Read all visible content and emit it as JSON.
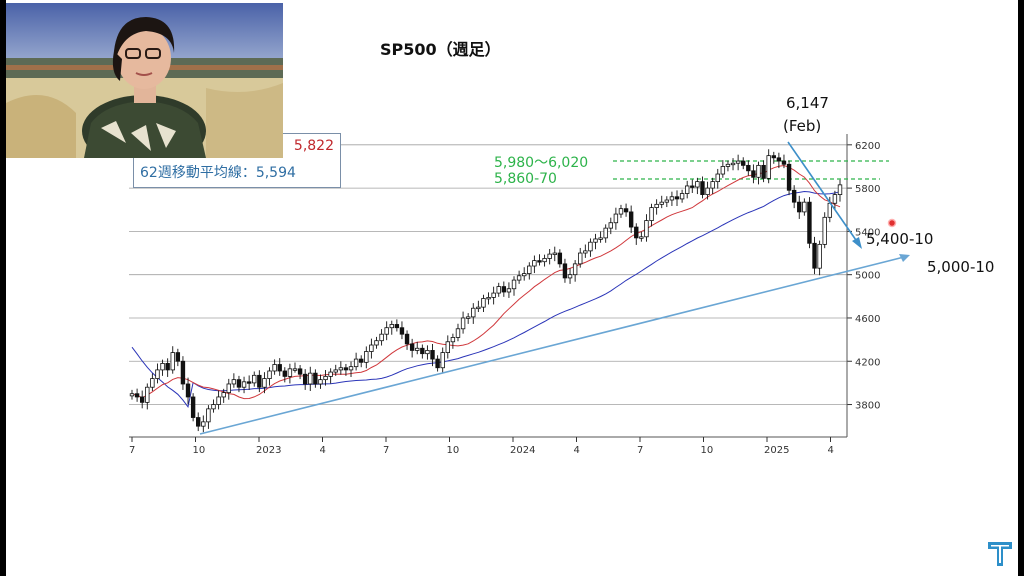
{
  "chart_data": {
    "type": "candlestick",
    "title": "SP500（週足）",
    "x_ticks": [
      "7",
      "10",
      "2023",
      "4",
      "7",
      "10",
      "2024",
      "4",
      "7",
      "10",
      "2025",
      "4"
    ],
    "y_ticks": [
      "3800",
      "4200",
      "4600",
      "5000",
      "5400",
      "5800",
      "6200"
    ],
    "y_range": [
      3500,
      6300
    ],
    "info_box": {
      "last_price": "5,822",
      "ma62": "62週移動平均線：5,594"
    },
    "annotations": {
      "peak_value": "6,147",
      "peak_date": "(Feb)",
      "resistance_band": "5,980～6,020",
      "resistance_level": "5,860-70",
      "support_upper": "5,400-10",
      "support_lower": "5,000-10"
    },
    "colors": {
      "candle": "#111111",
      "ma_short": "#d0383c",
      "ma_long": "#2b35b8",
      "trendline": "#6aa6d4",
      "dashed_level": "#2db34a",
      "grid": "#a0a0a0"
    },
    "close": [
      3900,
      3870,
      3820,
      3960,
      4040,
      4120,
      4180,
      4120,
      4280,
      4200,
      3990,
      3870,
      3680,
      3600,
      3640,
      3760,
      3800,
      3870,
      3910,
      3990,
      4030,
      3960,
      4010,
      4000,
      4070,
      3960,
      4040,
      4110,
      4170,
      4110,
      4060,
      4130,
      4130,
      4080,
      3990,
      4090,
      3990,
      4030,
      4060,
      4100,
      4120,
      4140,
      4120,
      4150,
      4220,
      4190,
      4290,
      4350,
      4390,
      4450,
      4510,
      4540,
      4510,
      4450,
      4360,
      4300,
      4320,
      4270,
      4300,
      4220,
      4140,
      4280,
      4380,
      4420,
      4500,
      4600,
      4610,
      4690,
      4700,
      4780,
      4790,
      4830,
      4890,
      4840,
      4870,
      4950,
      4990,
      5010,
      5080,
      5130,
      5120,
      5150,
      5190,
      5200,
      5100,
      4970,
      5000,
      5100,
      5200,
      5220,
      5300,
      5330,
      5340,
      5430,
      5480,
      5560,
      5610,
      5580,
      5440,
      5340,
      5350,
      5500,
      5620,
      5650,
      5670,
      5690,
      5720,
      5700,
      5750,
      5820,
      5810,
      5860,
      5740,
      5800,
      5860,
      5930,
      6000,
      6020,
      6030,
      6050,
      6010,
      5960,
      5900,
      6010,
      5890,
      6100,
      6080,
      6050,
      6020,
      5780,
      5670,
      5580,
      5670,
      5290,
      5060,
      5280,
      5530,
      5660,
      5740,
      5830
    ]
  }
}
